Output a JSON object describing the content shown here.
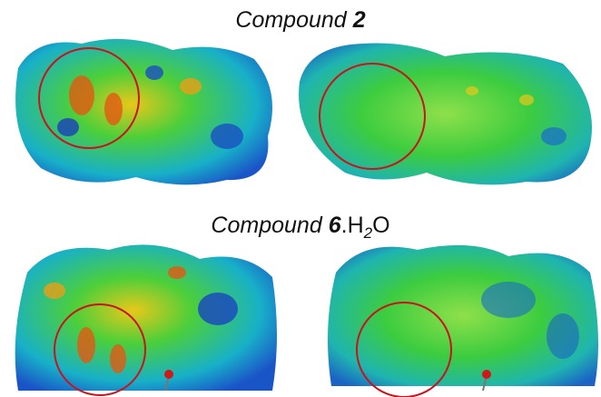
{
  "figure": {
    "panels": [
      {
        "label": "Compound",
        "number": "2"
      },
      {
        "label": "Compound",
        "number": "6",
        "suffix": ".H",
        "subscript": "2",
        "suffix_end": "O"
      }
    ]
  }
}
